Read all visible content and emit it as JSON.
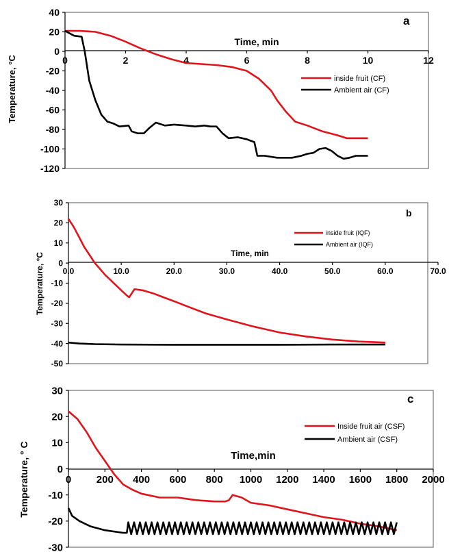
{
  "chart_data": [
    {
      "panel": "a",
      "type": "line",
      "xlabel": "Time, min",
      "ylabel": "Temperature, °C",
      "xlim": [
        0,
        12
      ],
      "ylim": [
        -120,
        40
      ],
      "x_ticks": [
        0,
        2,
        4,
        6,
        8,
        10,
        12
      ],
      "y_ticks": [
        40,
        20,
        0,
        -20,
        -40,
        -60,
        -80,
        -100,
        -120
      ],
      "legend": "right",
      "series": [
        {
          "name": "inside fruit (CF)",
          "color": "#e0141b",
          "points": [
            [
              0,
              21
            ],
            [
              0.5,
              21
            ],
            [
              1.0,
              20
            ],
            [
              1.5,
              16
            ],
            [
              2.0,
              10
            ],
            [
              2.5,
              3
            ],
            [
              3.0,
              -3
            ],
            [
              3.5,
              -8
            ],
            [
              4.0,
              -12
            ],
            [
              4.5,
              -13
            ],
            [
              5.0,
              -14
            ],
            [
              5.5,
              -16
            ],
            [
              6.0,
              -20
            ],
            [
              6.4,
              -28
            ],
            [
              6.8,
              -40
            ],
            [
              7.0,
              -50
            ],
            [
              7.3,
              -62
            ],
            [
              7.6,
              -72
            ],
            [
              8.0,
              -76
            ],
            [
              8.5,
              -82
            ],
            [
              9.0,
              -86
            ],
            [
              9.3,
              -89
            ],
            [
              9.5,
              -89
            ],
            [
              10.0,
              -89
            ]
          ]
        },
        {
          "name": "Ambient air (CF)",
          "color": "#000000",
          "points": [
            [
              0,
              21
            ],
            [
              0.3,
              16
            ],
            [
              0.55,
              15
            ],
            [
              0.65,
              0
            ],
            [
              0.8,
              -30
            ],
            [
              1.0,
              -50
            ],
            [
              1.2,
              -65
            ],
            [
              1.4,
              -72
            ],
            [
              1.6,
              -74
            ],
            [
              1.8,
              -77
            ],
            [
              2.1,
              -76
            ],
            [
              2.2,
              -82
            ],
            [
              2.4,
              -84
            ],
            [
              2.6,
              -84
            ],
            [
              2.8,
              -78
            ],
            [
              3.0,
              -73
            ],
            [
              3.3,
              -76
            ],
            [
              3.6,
              -75
            ],
            [
              4.0,
              -76
            ],
            [
              4.3,
              -77
            ],
            [
              4.6,
              -76
            ],
            [
              4.8,
              -77
            ],
            [
              5.0,
              -77
            ],
            [
              5.2,
              -84
            ],
            [
              5.4,
              -89
            ],
            [
              5.7,
              -88
            ],
            [
              6.0,
              -90
            ],
            [
              6.25,
              -93
            ],
            [
              6.35,
              -107
            ],
            [
              6.6,
              -107
            ],
            [
              7.0,
              -109
            ],
            [
              7.5,
              -109
            ],
            [
              7.8,
              -107
            ],
            [
              8.0,
              -105
            ],
            [
              8.2,
              -104
            ],
            [
              8.4,
              -100
            ],
            [
              8.6,
              -99
            ],
            [
              8.8,
              -102
            ],
            [
              9.0,
              -107
            ],
            [
              9.2,
              -110
            ],
            [
              9.4,
              -109
            ],
            [
              9.6,
              -107
            ],
            [
              10.0,
              -107
            ]
          ]
        }
      ]
    },
    {
      "panel": "b",
      "type": "line",
      "xlabel": "Time, min",
      "ylabel": "Temperature, °C",
      "xlim": [
        0,
        70
      ],
      "ylim": [
        -50,
        30
      ],
      "x_ticks": [
        0,
        10,
        20,
        30,
        40,
        50,
        60,
        70
      ],
      "x_tick_labels": [
        "0.0",
        "10.0",
        "20.0",
        "30.0",
        "40.0",
        "50.0",
        "60.0",
        "70.0"
      ],
      "y_ticks": [
        30,
        20,
        10,
        0,
        -10,
        -20,
        -30,
        -40,
        -50
      ],
      "legend": "top-right",
      "series": [
        {
          "name": "inside fruit (IQF)",
          "color": "#e0141b",
          "points": [
            [
              0,
              22
            ],
            [
              1,
              18
            ],
            [
              2,
              13
            ],
            [
              3,
              8
            ],
            [
              4,
              4
            ],
            [
              5,
              0
            ],
            [
              6,
              -3
            ],
            [
              7,
              -6
            ],
            [
              8,
              -8.5
            ],
            [
              9,
              -11
            ],
            [
              10,
              -13.5
            ],
            [
              11,
              -16
            ],
            [
              11.5,
              -17
            ],
            [
              12,
              -15
            ],
            [
              12.5,
              -13
            ],
            [
              14,
              -13.5
            ],
            [
              16,
              -15
            ],
            [
              18,
              -17
            ],
            [
              20,
              -19
            ],
            [
              23,
              -22
            ],
            [
              26,
              -25
            ],
            [
              30,
              -28
            ],
            [
              35,
              -31.5
            ],
            [
              40,
              -34.5
            ],
            [
              45,
              -36.5
            ],
            [
              50,
              -38
            ],
            [
              55,
              -39
            ],
            [
              60,
              -39.5
            ]
          ]
        },
        {
          "name": "Ambient air (IQF)",
          "color": "#000000",
          "points": [
            [
              0,
              -39.5
            ],
            [
              2,
              -40
            ],
            [
              5,
              -40.3
            ],
            [
              10,
              -40.5
            ],
            [
              20,
              -40.6
            ],
            [
              30,
              -40.6
            ],
            [
              40,
              -40.6
            ],
            [
              50,
              -40.5
            ],
            [
              60,
              -40.5
            ]
          ]
        }
      ]
    },
    {
      "panel": "c",
      "type": "line",
      "xlabel": "Time,min",
      "ylabel": "Temperature, ° C",
      "xlim": [
        0,
        2000
      ],
      "ylim": [
        -30,
        30
      ],
      "x_ticks": [
        0,
        200,
        400,
        600,
        800,
        1000,
        1200,
        1400,
        1600,
        1800,
        2000
      ],
      "y_ticks": [
        30,
        20,
        10,
        0,
        -10,
        -20,
        -30
      ],
      "legend": "top-right",
      "series": [
        {
          "name": "Inside fruit air (CSF)",
          "color": "#e0141b",
          "points": [
            [
              0,
              22
            ],
            [
              50,
              19
            ],
            [
              100,
              14
            ],
            [
              150,
              8
            ],
            [
              200,
              3
            ],
            [
              250,
              -2
            ],
            [
              300,
              -6
            ],
            [
              350,
              -8
            ],
            [
              400,
              -9.5
            ],
            [
              500,
              -11
            ],
            [
              600,
              -11
            ],
            [
              700,
              -12
            ],
            [
              800,
              -12.5
            ],
            [
              860,
              -12.5
            ],
            [
              880,
              -12
            ],
            [
              900,
              -10
            ],
            [
              950,
              -11
            ],
            [
              1000,
              -13
            ],
            [
              1100,
              -14
            ],
            [
              1200,
              -15.5
            ],
            [
              1300,
              -17
            ],
            [
              1400,
              -18.5
            ],
            [
              1500,
              -19.5
            ],
            [
              1600,
              -21
            ],
            [
              1700,
              -22
            ],
            [
              1800,
              -23.5
            ]
          ]
        },
        {
          "name": "Ambient air (CSF)",
          "color": "#000000",
          "points": [
            [
              0,
              -15
            ],
            [
              20,
              -18
            ],
            [
              60,
              -20
            ],
            [
              120,
              -22
            ],
            [
              200,
              -23.5
            ],
            [
              300,
              -24.5
            ],
            [
              320,
              -24.5
            ]
          ],
          "oscillation": {
            "x_start": 320,
            "x_end": 1800,
            "period": 32,
            "high": -20.5,
            "low": -25
          }
        }
      ]
    }
  ]
}
